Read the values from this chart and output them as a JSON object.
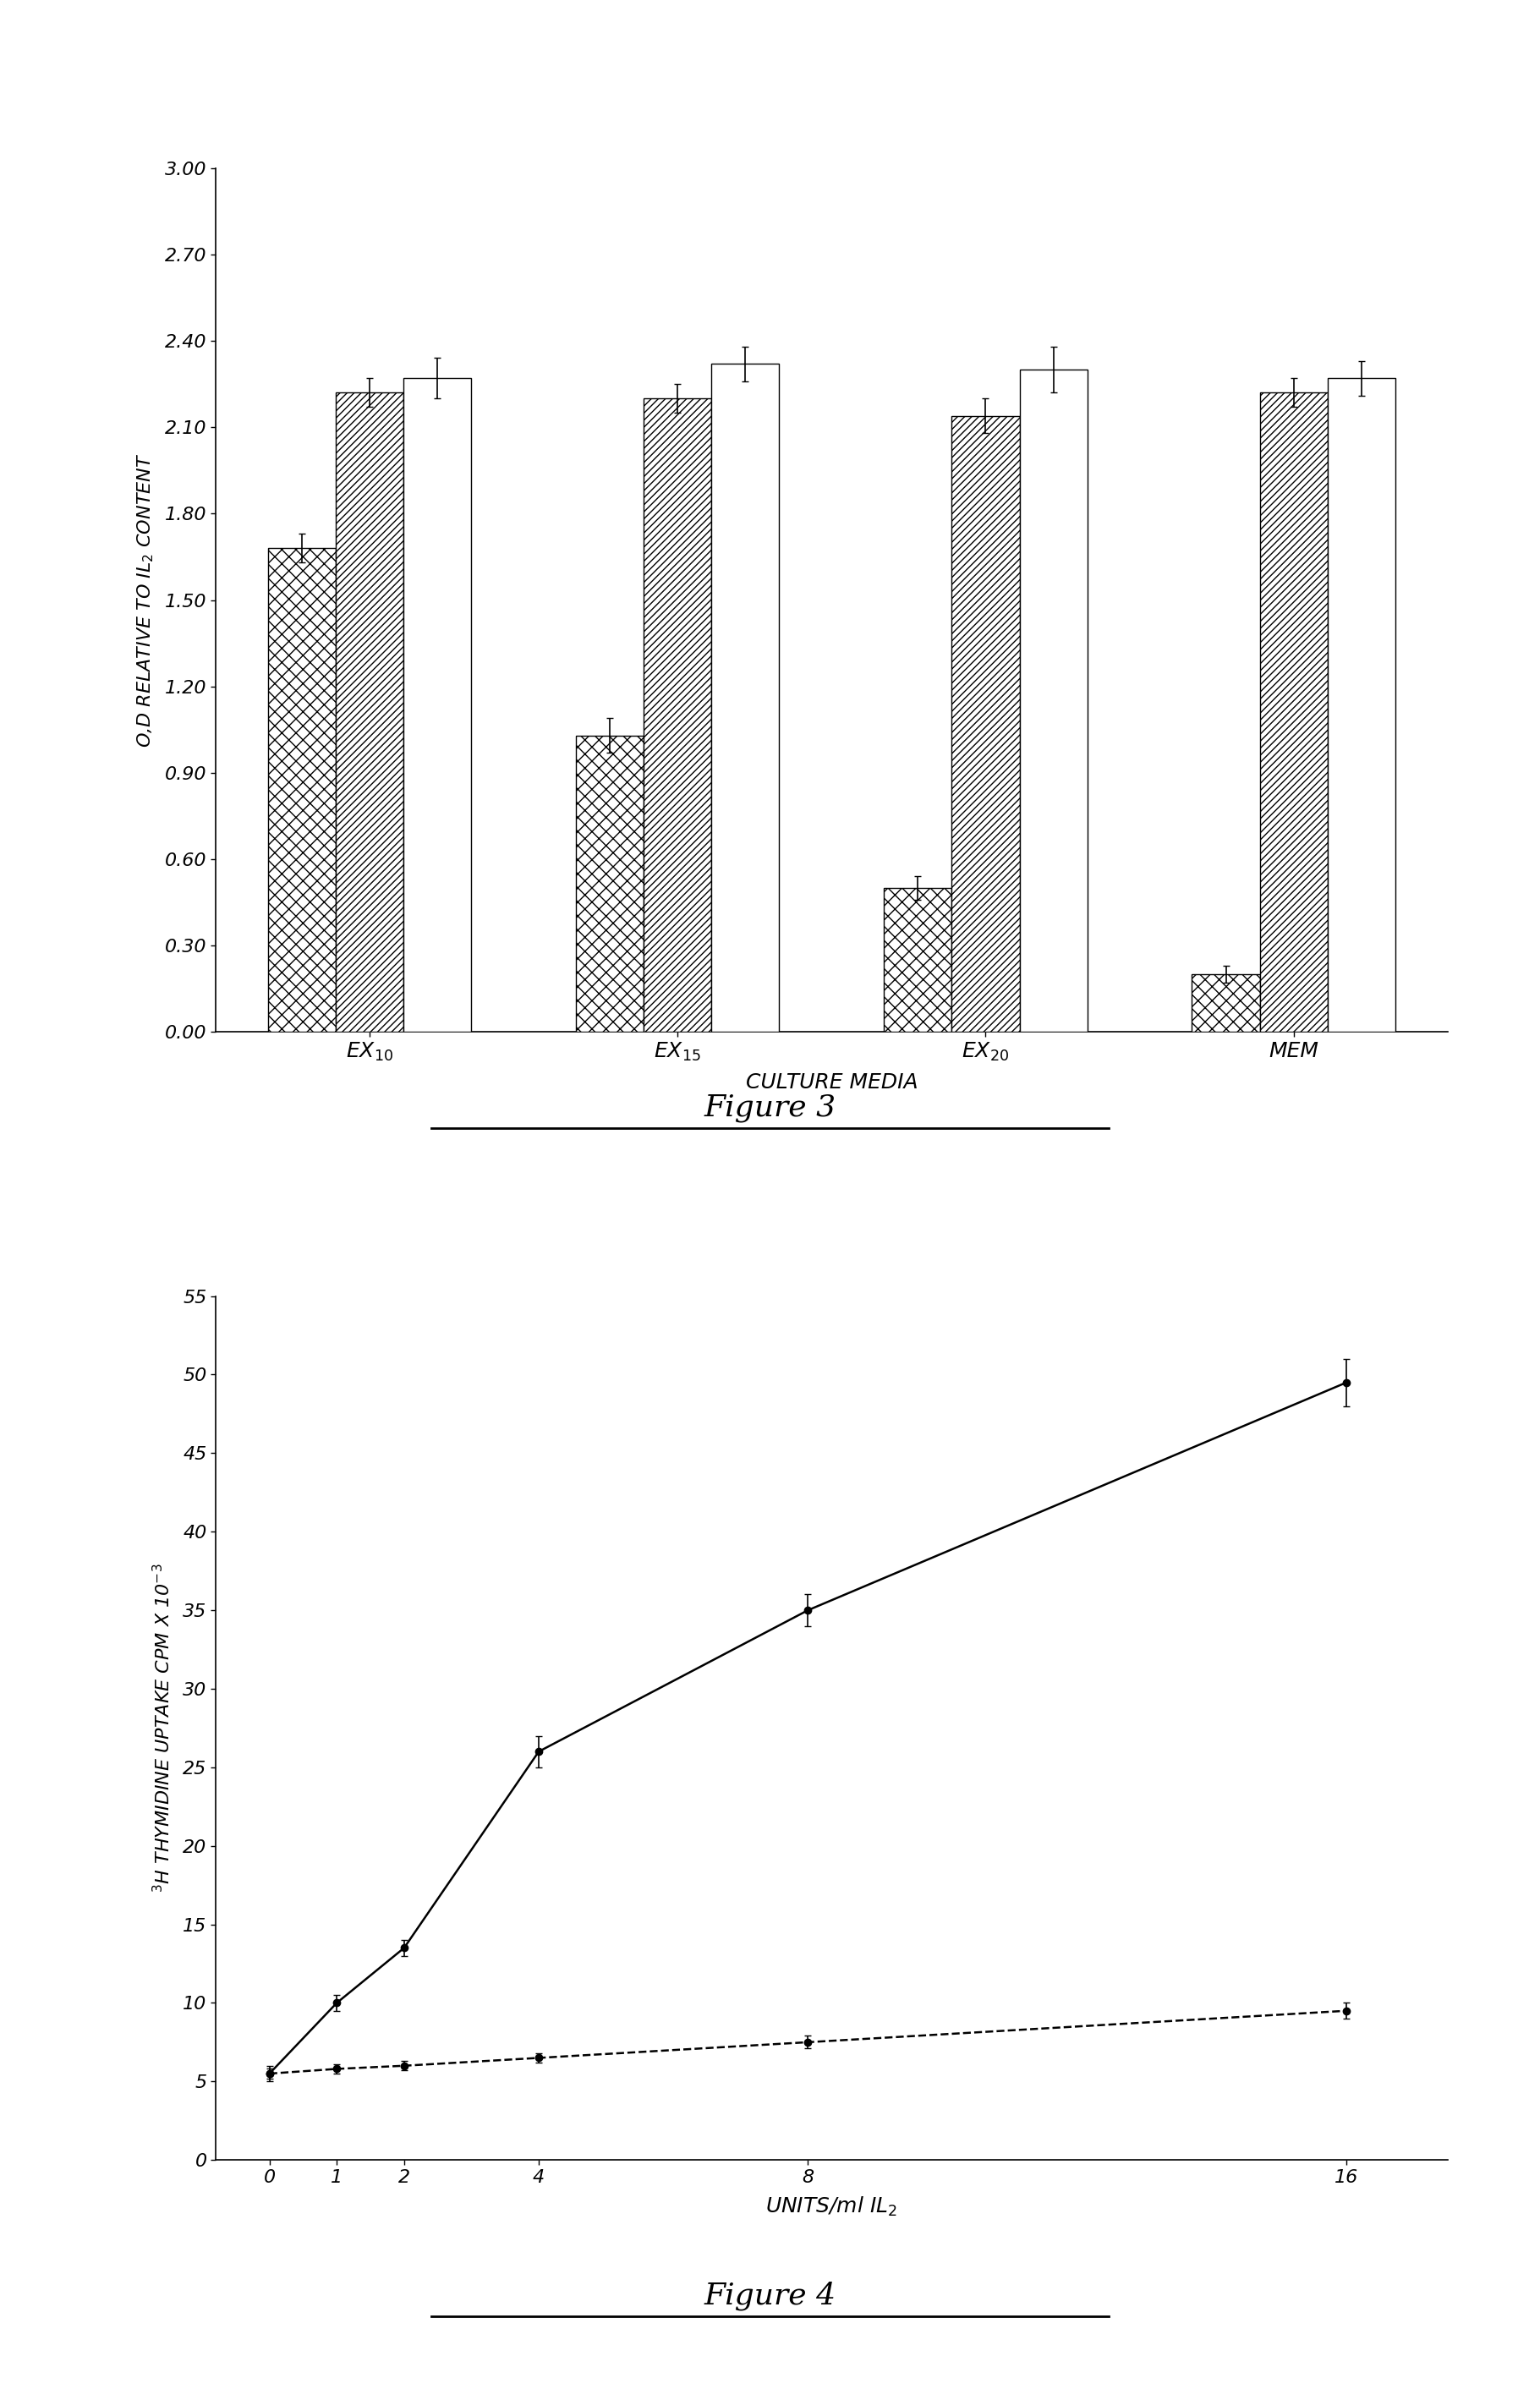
{
  "fig3": {
    "groups": [
      "EX$_{10}$",
      "EX$_{15}$",
      "EX$_{20}$",
      "MEM"
    ],
    "values": [
      [
        1.68,
        2.22,
        2.27
      ],
      [
        1.03,
        2.2,
        2.32
      ],
      [
        0.5,
        2.14,
        2.3
      ],
      [
        0.2,
        2.22,
        2.27
      ]
    ],
    "errors": [
      [
        0.05,
        0.05,
        0.07
      ],
      [
        0.06,
        0.05,
        0.06
      ],
      [
        0.04,
        0.06,
        0.08
      ],
      [
        0.03,
        0.05,
        0.06
      ]
    ],
    "ylim": [
      0.0,
      3.0
    ],
    "yticks": [
      0.0,
      0.3,
      0.6,
      0.9,
      1.2,
      1.5,
      1.8,
      2.1,
      2.4,
      2.7,
      3.0
    ],
    "ylabel": "O,D RELATIVE TO IL$_2$ CONTENT",
    "xlabel": "CULTURE MEDIA",
    "figure_label": "Figure 3"
  },
  "fig4": {
    "x": [
      0,
      1,
      2,
      4,
      8,
      16
    ],
    "solid_y": [
      5.5,
      10.0,
      13.5,
      26.0,
      35.0,
      49.5
    ],
    "solid_err": [
      0.5,
      0.5,
      0.5,
      1.0,
      1.0,
      1.5
    ],
    "dashed_y": [
      5.5,
      5.8,
      6.0,
      6.5,
      7.5,
      9.5
    ],
    "dashed_err": [
      0.3,
      0.3,
      0.3,
      0.3,
      0.4,
      0.5
    ],
    "ylim": [
      0,
      55
    ],
    "yticks": [
      0,
      5,
      10,
      15,
      20,
      25,
      30,
      35,
      40,
      45,
      50,
      55
    ],
    "ylabel": "$^3$H THYMIDINE UPTAKE CPM X 10$^{-3}$",
    "xlabel": "UNITS/ml IL$_2$",
    "figure_label": "Figure 4"
  },
  "background_color": "#ffffff",
  "bar_width": 0.22
}
